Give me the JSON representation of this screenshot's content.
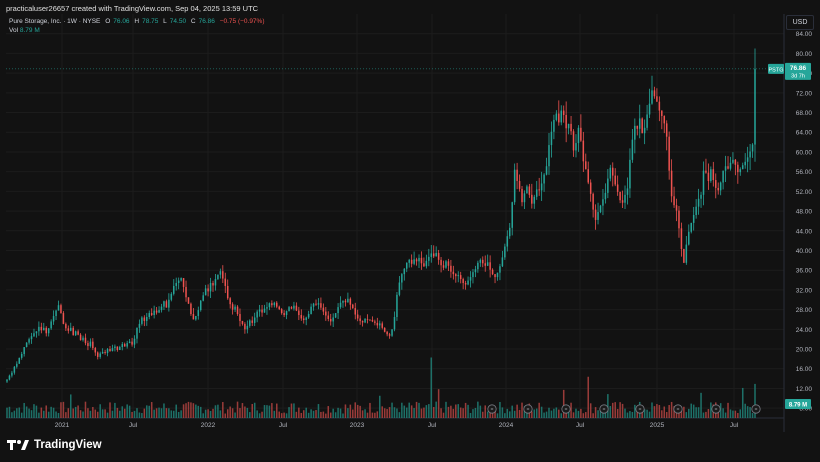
{
  "header": {
    "attribution": "practicaluser26657 created with TradingView.com, Sep 04, 2025 13:59 UTC"
  },
  "legend": {
    "name": "Pure Storage, Inc. · 1W · NYSE",
    "open_label": "O",
    "open": "76.06",
    "high_label": "H",
    "high": "78.75",
    "low_label": "L",
    "low": "74.50",
    "close_label": "C",
    "close": "76.86",
    "change": "−0.75 (−0.97%)",
    "vol_label": "Vol",
    "vol": "8.79 M"
  },
  "brand": {
    "name": "TradingView"
  },
  "currency": "USD",
  "price_tag": {
    "symbol": "PSTG",
    "price": "76.86",
    "countdown": "3d 7h"
  },
  "volume_tag": "8.79 M",
  "colors": {
    "up": "#26a69a",
    "down": "#ef5350",
    "up_vol": "#1f7b72",
    "down_vol": "#a8403e",
    "background": "#121212",
    "grid": "#1c1c1c"
  },
  "chart_data": {
    "type": "candlestick",
    "ylim": [
      6,
      88
    ],
    "y_ticks": [
      "84.00",
      "80.00",
      "76.00",
      "72.00",
      "68.00",
      "64.00",
      "60.00",
      "56.00",
      "52.00",
      "48.00",
      "44.00",
      "40.00",
      "36.00",
      "32.00",
      "28.00",
      "24.00",
      "20.00",
      "16.00",
      "12.00",
      "8.00"
    ],
    "x_ticks": [
      "2021",
      "Jul",
      "2022",
      "Jul",
      "2023",
      "Jul",
      "2024",
      "Jul",
      "2025",
      "Jul"
    ],
    "last_price": 76.86,
    "last_volume_millions": 8.79,
    "weekly_closes_approx": [
      13.8,
      14.6,
      15.2,
      16.4,
      17.0,
      18.2,
      19.0,
      20.4,
      21.3,
      22.0,
      22.6,
      23.2,
      23.6,
      24.5,
      23.8,
      24.3,
      23.2,
      24.2,
      25.6,
      26.7,
      27.8,
      28.9,
      27.3,
      25.1,
      24.2,
      23.7,
      24.3,
      22.8,
      23.6,
      22.9,
      21.8,
      22.3,
      21.2,
      20.6,
      21.5,
      20.2,
      19.3,
      18.4,
      19.1,
      19.4,
      19.2,
      20.0,
      19.6,
      20.2,
      20.5,
      19.8,
      20.4,
      21.0,
      20.5,
      21.2,
      21.5,
      20.9,
      22.1,
      24.3,
      25.1,
      26.4,
      25.7,
      26.5,
      27.3,
      26.9,
      27.8,
      27.4,
      27.9,
      28.6,
      29.7,
      28.4,
      30.0,
      31.2,
      32.8,
      33.4,
      33.9,
      34.4,
      32.6,
      30.5,
      29.2,
      27.1,
      26.0,
      26.7,
      27.9,
      29.8,
      30.9,
      32.3,
      31.7,
      33.4,
      32.9,
      34.2,
      35.1,
      35.8,
      34.3,
      32.8,
      30.3,
      29.1,
      28.0,
      28.6,
      27.1,
      25.7,
      25.1,
      24.0,
      24.7,
      25.8,
      25.3,
      26.4,
      27.6,
      28.0,
      27.4,
      28.2,
      28.5,
      29.3,
      28.9,
      29.4,
      28.6,
      28.1,
      27.3,
      26.9,
      27.7,
      28.5,
      28.2,
      28.8,
      27.8,
      26.9,
      26.2,
      25.9,
      26.4,
      27.1,
      28.6,
      29.2,
      29.0,
      29.3,
      28.4,
      27.6,
      26.8,
      26.1,
      25.6,
      26.4,
      27.3,
      28.5,
      29.4,
      29.8,
      29.5,
      30.2,
      29.0,
      28.3,
      27.0,
      26.2,
      25.7,
      25.4,
      26.1,
      26.0,
      25.9,
      25.6,
      25.3,
      24.8,
      25.2,
      24.3,
      23.5,
      23.0,
      22.7,
      24.0,
      26.5,
      31.0,
      33.5,
      35.2,
      36.3,
      37.5,
      38.1,
      37.3,
      38.2,
      37.8,
      38.5,
      37.4,
      36.8,
      37.9,
      38.7,
      39.4,
      38.8,
      39.5,
      38.1,
      37.0,
      36.5,
      37.8,
      36.9,
      35.7,
      35.2,
      34.8,
      35.0,
      34.2,
      33.4,
      33.1,
      33.9,
      34.6,
      35.6,
      36.2,
      37.5,
      38.1,
      37.4,
      36.9,
      37.6,
      36.1,
      35.2,
      34.6,
      35.5,
      36.8,
      38.6,
      40.8,
      42.9,
      44.6,
      49.8,
      56.4,
      54.1,
      52.5,
      49.8,
      51.6,
      53.0,
      51.3,
      49.5,
      50.9,
      52.4,
      52.2,
      53.6,
      55.4,
      57.1,
      61.4,
      64.1,
      66.5,
      67.8,
      66.0,
      68.4,
      67.5,
      64.8,
      65.7,
      64.2,
      60.3,
      61.8,
      64.9,
      62.3,
      58.1,
      56.5,
      53.8,
      51.5,
      48.3,
      46.2,
      47.8,
      49.1,
      50.4,
      51.7,
      54.6,
      56.8,
      55.2,
      53.4,
      51.9,
      50.2,
      49.7,
      51.3,
      52.6,
      58.4,
      62.5,
      65.3,
      64.7,
      66.8,
      63.8,
      64.9,
      67.6,
      69.8,
      72.5,
      71.3,
      70.2,
      68.4,
      67.3,
      65.8,
      63.1,
      56.2,
      51.0,
      49.2,
      48.1,
      44.5,
      40.3,
      37.5,
      41.2,
      43.8,
      45.6,
      47.2,
      48.9,
      50.5,
      51.3,
      56.2,
      55.8,
      54.1,
      56.5,
      54.3,
      52.7,
      52.2,
      53.8,
      56.2,
      57.1,
      56.6,
      57.8,
      58.4,
      57.4,
      55.9,
      56.5,
      57.3,
      58.0,
      58.9,
      60.1,
      61.5,
      76.86
    ]
  }
}
